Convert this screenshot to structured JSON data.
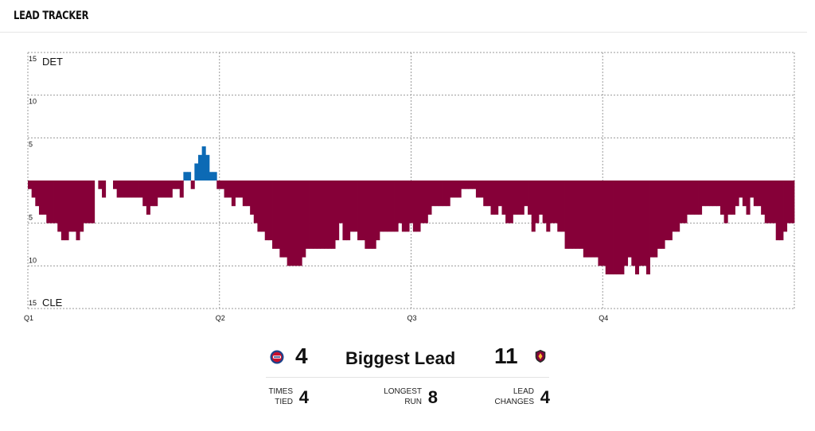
{
  "header": {
    "title": "LEAD TRACKER"
  },
  "colors": {
    "home": "#0c6ab5",
    "away": "#860038",
    "grid": "#9a9a9a"
  },
  "chart_data": {
    "type": "bar",
    "title": "LEAD TRACKER",
    "series_labels": {
      "top": "DET",
      "bottom": "CLE"
    },
    "y_ticks": [
      15,
      10,
      5
    ],
    "ylim": [
      -15,
      15
    ],
    "x_ticks": [
      "Q1",
      "Q2",
      "Q3",
      "Q4"
    ],
    "x_unit": "game time, 200 equal steps",
    "values": [
      -1,
      -2,
      -3,
      -4,
      -4,
      -5,
      -5,
      -5,
      -6,
      -7,
      -7,
      -6,
      -6,
      -7,
      -6,
      -5,
      -5,
      -5,
      0,
      -1,
      -2,
      0,
      0,
      -1,
      -2,
      -2,
      -2,
      -2,
      -2,
      -2,
      -2,
      -3,
      -4,
      -3,
      -3,
      -2,
      -2,
      -2,
      -2,
      -1,
      -1,
      -2,
      1,
      1,
      -1,
      2,
      3,
      4,
      3,
      1,
      1,
      -1,
      -1,
      -2,
      -2,
      -3,
      -2,
      -2,
      -3,
      -3,
      -4,
      -5,
      -6,
      -6,
      -7,
      -7,
      -8,
      -8,
      -9,
      -9,
      -10,
      -10,
      -10,
      -10,
      -9,
      -8,
      -8,
      -8,
      -8,
      -8,
      -8,
      -8,
      -8,
      -7,
      -5,
      -7,
      -7,
      -6,
      -6,
      -7,
      -7,
      -8,
      -8,
      -8,
      -7,
      -6,
      -6,
      -6,
      -6,
      -6,
      -5,
      -6,
      -6,
      -5,
      -6,
      -6,
      -5,
      -5,
      -4,
      -3,
      -3,
      -3,
      -3,
      -3,
      -2,
      -2,
      -2,
      -1,
      -1,
      -1,
      -1,
      -2,
      -2,
      -3,
      -3,
      -4,
      -4,
      -3,
      -4,
      -5,
      -5,
      -4,
      -4,
      -4,
      -3,
      -4,
      -6,
      -5,
      -4,
      -5,
      -6,
      -5,
      -5,
      -6,
      -6,
      -8,
      -8,
      -8,
      -8,
      -8,
      -9,
      -9,
      -9,
      -9,
      -10,
      -10,
      -11,
      -11,
      -11,
      -11,
      -11,
      -10,
      -9,
      -10,
      -11,
      -10,
      -10,
      -11,
      -9,
      -9,
      -8,
      -8,
      -7,
      -7,
      -6,
      -6,
      -5,
      -5,
      -4,
      -4,
      -4,
      -4,
      -3,
      -3,
      -3,
      -3,
      -3,
      -4,
      -5,
      -4,
      -4,
      -3,
      -2,
      -3,
      -4,
      -2,
      -3,
      -3,
      -4,
      -5,
      -5,
      -5,
      -7,
      -7,
      -6,
      -5,
      -5
    ]
  },
  "summary": {
    "home_biggest_lead": "4",
    "biggest_lead_label": "Biggest Lead",
    "away_biggest_lead": "11",
    "times_tied_label": "TIMES\nTIED",
    "times_tied": "4",
    "longest_run_label": "LONGEST\nRUN",
    "longest_run": "8",
    "lead_changes_label": "LEAD\nCHANGES",
    "lead_changes": "4"
  }
}
